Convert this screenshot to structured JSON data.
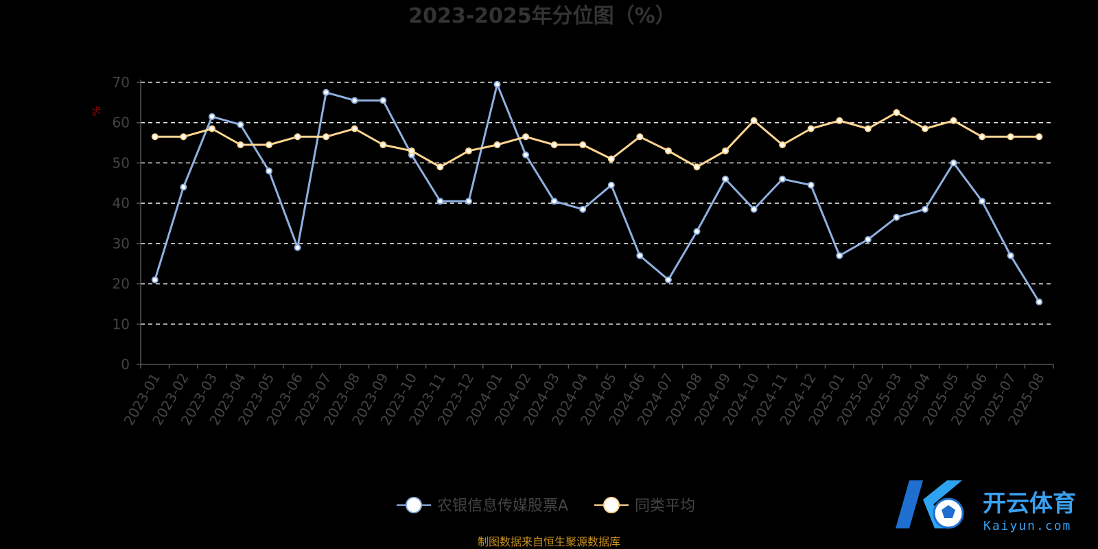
{
  "chart_data": {
    "type": "line",
    "title": "2023-2025年分位图（%）",
    "ylabel": "%",
    "ylim": [
      0,
      70
    ],
    "yticks": [
      0,
      10,
      20,
      30,
      40,
      50,
      60,
      70
    ],
    "grid": true,
    "legend_position": "bottom-center",
    "categories": [
      "2023-01",
      "2023-02",
      "2023-03",
      "2023-04",
      "2023-05",
      "2023-06",
      "2023-07",
      "2023-08",
      "2023-09",
      "2023-10",
      "2023-11",
      "2023-12",
      "2024-01",
      "2024-02",
      "2024-03",
      "2024-04",
      "2024-05",
      "2024-06",
      "2024-07",
      "2024-08",
      "2024-09",
      "2024-10",
      "2024-11",
      "2024-12",
      "2025-01",
      "2025-02",
      "2025-03",
      "2025-04",
      "2025-05",
      "2025-06",
      "2025-07",
      "2025-08"
    ],
    "series": [
      {
        "name": "农银信息传媒股票A",
        "color": "#8fb0e0",
        "values": [
          21,
          44,
          61.5,
          59.5,
          48,
          29,
          67.5,
          65.5,
          65.5,
          52,
          40.5,
          40.5,
          69.5,
          52,
          40.5,
          38.5,
          44.5,
          27,
          21,
          33,
          46,
          38.5,
          46,
          44.5,
          27,
          31,
          36.5,
          38.5,
          50,
          40.5,
          27,
          15.5
        ]
      },
      {
        "name": "同类平均",
        "color": "#ffd591",
        "values": [
          56.5,
          56.5,
          58.5,
          54.5,
          54.5,
          56.5,
          56.5,
          58.5,
          54.5,
          53,
          49,
          53,
          54.5,
          56.5,
          54.5,
          54.5,
          51,
          56.5,
          53,
          49,
          53,
          60.5,
          54.5,
          58.5,
          60.5,
          58.5,
          62.5,
          58.5,
          60.5,
          56.5,
          56.5,
          56.5
        ]
      }
    ]
  },
  "source_note": "制图数据来自恒生聚源数据库",
  "watermark": {
    "brand": "开云体育",
    "domain": "Kaiyun.com",
    "logo_colors": [
      "#1565c0",
      "#2ea3f2"
    ]
  }
}
